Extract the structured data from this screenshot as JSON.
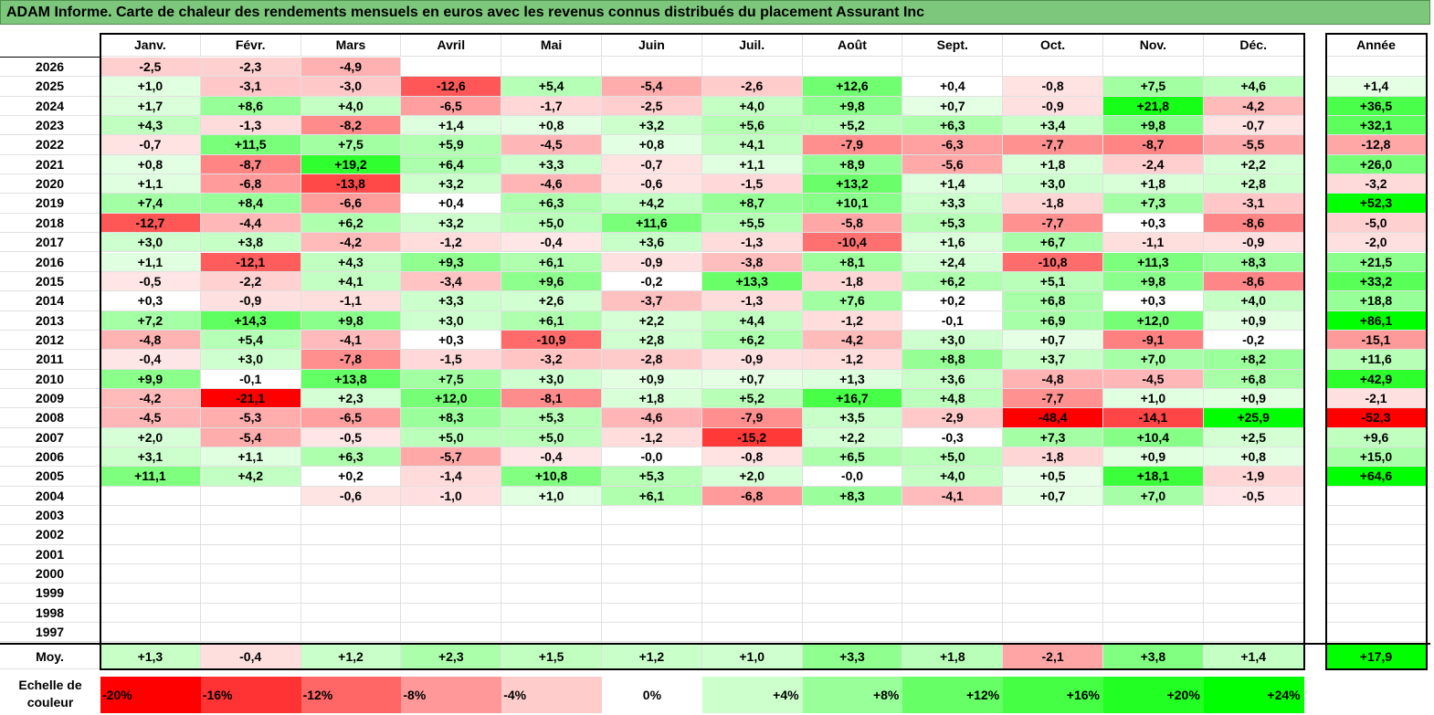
{
  "title": "ADAM Informe. Carte de chaleur des rendements mensuels en euros avec les revenus connus distribués du placement Assurant Inc",
  "chart_data": {
    "type": "heatmap",
    "months": [
      "Janv.",
      "Févr.",
      "Mars",
      "Avril",
      "Mai",
      "Juin",
      "Juil.",
      "Août",
      "Sept.",
      "Oct.",
      "Nov.",
      "Déc."
    ],
    "year_header": "Année",
    "rows": [
      {
        "year": "2026",
        "values": [
          "-2,5",
          "-2,3",
          "-4,9",
          "",
          "",
          "",
          "",
          "",
          "",
          "",
          "",
          ""
        ],
        "annual": ""
      },
      {
        "year": "2025",
        "values": [
          "+1,0",
          "-3,1",
          "-3,0",
          "-12,6",
          "+5,4",
          "-5,4",
          "-2,6",
          "+12,6",
          "+0,4",
          "-0,8",
          "+7,5",
          "+4,6"
        ],
        "annual": "+1,4"
      },
      {
        "year": "2024",
        "values": [
          "+1,7",
          "+8,6",
          "+4,0",
          "-6,5",
          "-1,7",
          "-2,5",
          "+4,0",
          "+9,8",
          "+0,7",
          "-0,9",
          "+21,8",
          "-4,2"
        ],
        "annual": "+36,5"
      },
      {
        "year": "2023",
        "values": [
          "+4,3",
          "-1,3",
          "-8,2",
          "+1,4",
          "+0,8",
          "+3,2",
          "+5,6",
          "+5,2",
          "+6,3",
          "+3,4",
          "+9,8",
          "-0,7"
        ],
        "annual": "+32,1"
      },
      {
        "year": "2022",
        "values": [
          "-0,7",
          "+11,5",
          "+7,5",
          "+5,9",
          "-4,5",
          "+0,8",
          "+4,1",
          "-7,9",
          "-6,3",
          "-7,7",
          "-8,7",
          "-5,5"
        ],
        "annual": "-12,8"
      },
      {
        "year": "2021",
        "values": [
          "+0,8",
          "-8,7",
          "+19,2",
          "+6,4",
          "+3,3",
          "-0,7",
          "+1,1",
          "+8,9",
          "-5,6",
          "+1,8",
          "-2,4",
          "+2,2"
        ],
        "annual": "+26,0"
      },
      {
        "year": "2020",
        "values": [
          "+1,1",
          "-6,8",
          "-13,8",
          "+3,2",
          "-4,6",
          "-0,6",
          "-1,5",
          "+13,2",
          "+1,4",
          "+3,0",
          "+1,8",
          "+2,8"
        ],
        "annual": "-3,2"
      },
      {
        "year": "2019",
        "values": [
          "+7,4",
          "+8,4",
          "-6,6",
          "+0,4",
          "+6,3",
          "+4,2",
          "+8,7",
          "+10,1",
          "+3,3",
          "-1,8",
          "+7,3",
          "-3,1"
        ],
        "annual": "+52,3"
      },
      {
        "year": "2018",
        "values": [
          "-12,7",
          "-4,4",
          "+6,2",
          "+3,2",
          "+5,0",
          "+11,6",
          "+5,5",
          "-5,8",
          "+5,3",
          "-7,7",
          "+0,3",
          "-8,6"
        ],
        "annual": "-5,0"
      },
      {
        "year": "2017",
        "values": [
          "+3,0",
          "+3,8",
          "-4,2",
          "-1,2",
          "-0,4",
          "+3,6",
          "-1,3",
          "-10,4",
          "+1,6",
          "+6,7",
          "-1,1",
          "-0,9"
        ],
        "annual": "-2,0"
      },
      {
        "year": "2016",
        "values": [
          "+1,1",
          "-12,1",
          "+4,3",
          "+9,3",
          "+6,1",
          "-0,9",
          "-3,8",
          "+8,1",
          "+2,4",
          "-10,8",
          "+11,3",
          "+8,3"
        ],
        "annual": "+21,5"
      },
      {
        "year": "2015",
        "values": [
          "-0,5",
          "-2,2",
          "+4,1",
          "-3,4",
          "+9,6",
          "-0,2",
          "+13,3",
          "-1,8",
          "+6,2",
          "+5,1",
          "+9,8",
          "-8,6"
        ],
        "annual": "+33,2"
      },
      {
        "year": "2014",
        "values": [
          "+0,3",
          "-0,9",
          "-1,1",
          "+3,3",
          "+2,6",
          "-3,7",
          "-1,3",
          "+7,6",
          "+0,2",
          "+6,8",
          "+0,3",
          "+4,0"
        ],
        "annual": "+18,8"
      },
      {
        "year": "2013",
        "values": [
          "+7,2",
          "+14,3",
          "+9,8",
          "+3,0",
          "+6,1",
          "+2,2",
          "+4,4",
          "-1,2",
          "-0,1",
          "+6,9",
          "+12,0",
          "+0,9"
        ],
        "annual": "+86,1"
      },
      {
        "year": "2012",
        "values": [
          "-4,8",
          "+5,4",
          "-4,1",
          "+0,3",
          "-10,9",
          "+2,8",
          "+6,2",
          "-4,2",
          "+3,0",
          "+0,7",
          "-9,1",
          "-0,2"
        ],
        "annual": "-15,1"
      },
      {
        "year": "2011",
        "values": [
          "-0,4",
          "+3,0",
          "-7,8",
          "-1,5",
          "-3,2",
          "-2,8",
          "-0,9",
          "-1,2",
          "+8,8",
          "+3,7",
          "+7,0",
          "+8,2"
        ],
        "annual": "+11,6"
      },
      {
        "year": "2010",
        "values": [
          "+9,9",
          "-0,1",
          "+13,8",
          "+7,5",
          "+3,0",
          "+0,9",
          "+0,7",
          "+1,3",
          "+3,6",
          "-4,8",
          "-4,5",
          "+6,8"
        ],
        "annual": "+42,9"
      },
      {
        "year": "2009",
        "values": [
          "-4,2",
          "-21,1",
          "+2,3",
          "+12,0",
          "-8,1",
          "+1,8",
          "+5,2",
          "+16,7",
          "+4,8",
          "-7,7",
          "+1,0",
          "+0,9"
        ],
        "annual": "-2,1"
      },
      {
        "year": "2008",
        "values": [
          "-4,5",
          "-5,3",
          "-6,5",
          "+8,3",
          "+5,3",
          "-4,6",
          "-7,9",
          "+3,5",
          "-2,9",
          "-48,4",
          "-14,1",
          "+25,9"
        ],
        "annual": "-52,3"
      },
      {
        "year": "2007",
        "values": [
          "+2,0",
          "-5,4",
          "-0,5",
          "+5,0",
          "+5,0",
          "-1,2",
          "-15,2",
          "+2,2",
          "-0,3",
          "+7,3",
          "+10,4",
          "+2,5"
        ],
        "annual": "+9,6"
      },
      {
        "year": "2006",
        "values": [
          "+3,1",
          "+1,1",
          "+6,3",
          "-5,7",
          "-0,4",
          "-0,0",
          "-0,8",
          "+6,5",
          "+5,0",
          "-1,8",
          "+0,9",
          "+0,8"
        ],
        "annual": "+15,0"
      },
      {
        "year": "2005",
        "values": [
          "+11,1",
          "+4,2",
          "+0,2",
          "-1,4",
          "+10,8",
          "+5,3",
          "+2,0",
          "-0,0",
          "+4,0",
          "+0,5",
          "+18,1",
          "-1,9"
        ],
        "annual": "+64,6"
      },
      {
        "year": "2004",
        "values": [
          "",
          "",
          "-0,6",
          "-1,0",
          "+1,0",
          "+6,1",
          "-6,8",
          "+8,3",
          "-4,1",
          "+0,7",
          "+7,0",
          "-0,5"
        ],
        "annual": ""
      },
      {
        "year": "2003",
        "values": [
          "",
          "",
          "",
          "",
          "",
          "",
          "",
          "",
          "",
          "",
          "",
          ""
        ],
        "annual": ""
      },
      {
        "year": "2002",
        "values": [
          "",
          "",
          "",
          "",
          "",
          "",
          "",
          "",
          "",
          "",
          "",
          ""
        ],
        "annual": ""
      },
      {
        "year": "2001",
        "values": [
          "",
          "",
          "",
          "",
          "",
          "",
          "",
          "",
          "",
          "",
          "",
          ""
        ],
        "annual": ""
      },
      {
        "year": "2000",
        "values": [
          "",
          "",
          "",
          "",
          "",
          "",
          "",
          "",
          "",
          "",
          "",
          ""
        ],
        "annual": ""
      },
      {
        "year": "1999",
        "values": [
          "",
          "",
          "",
          "",
          "",
          "",
          "",
          "",
          "",
          "",
          "",
          ""
        ],
        "annual": ""
      },
      {
        "year": "1998",
        "values": [
          "",
          "",
          "",
          "",
          "",
          "",
          "",
          "",
          "",
          "",
          "",
          ""
        ],
        "annual": ""
      },
      {
        "year": "1997",
        "values": [
          "",
          "",
          "",
          "",
          "",
          "",
          "",
          "",
          "",
          "",
          "",
          ""
        ],
        "annual": ""
      }
    ],
    "average": {
      "label": "Moy.",
      "values": [
        "+1,3",
        "-0,4",
        "+1,2",
        "+2,3",
        "+1,5",
        "+1,2",
        "+1,0",
        "+3,3",
        "+1,8",
        "-2,1",
        "+3,8",
        "+1,4"
      ],
      "annual": "+17,9"
    },
    "color_scale": {
      "label": "Echelle de couleur",
      "steps": [
        "-20%",
        "-16%",
        "-12%",
        "-8%",
        "-4%",
        "0%",
        "+4%",
        "+8%",
        "+12%",
        "+16%",
        "+20%",
        "+24%"
      ],
      "colors": [
        "#ff0000",
        "#ff3333",
        "#ff6666",
        "#ff9999",
        "#ffcccc",
        "#ffffff",
        "#ccffcc",
        "#99ff99",
        "#66ff66",
        "#44ff44",
        "#22ff22",
        "#00ff00"
      ]
    },
    "colors": {
      "negative_max": "#ff0000",
      "positive_max": "#00ff00",
      "neutral": "#ffffff",
      "title_bar": "#7cc77c"
    }
  }
}
